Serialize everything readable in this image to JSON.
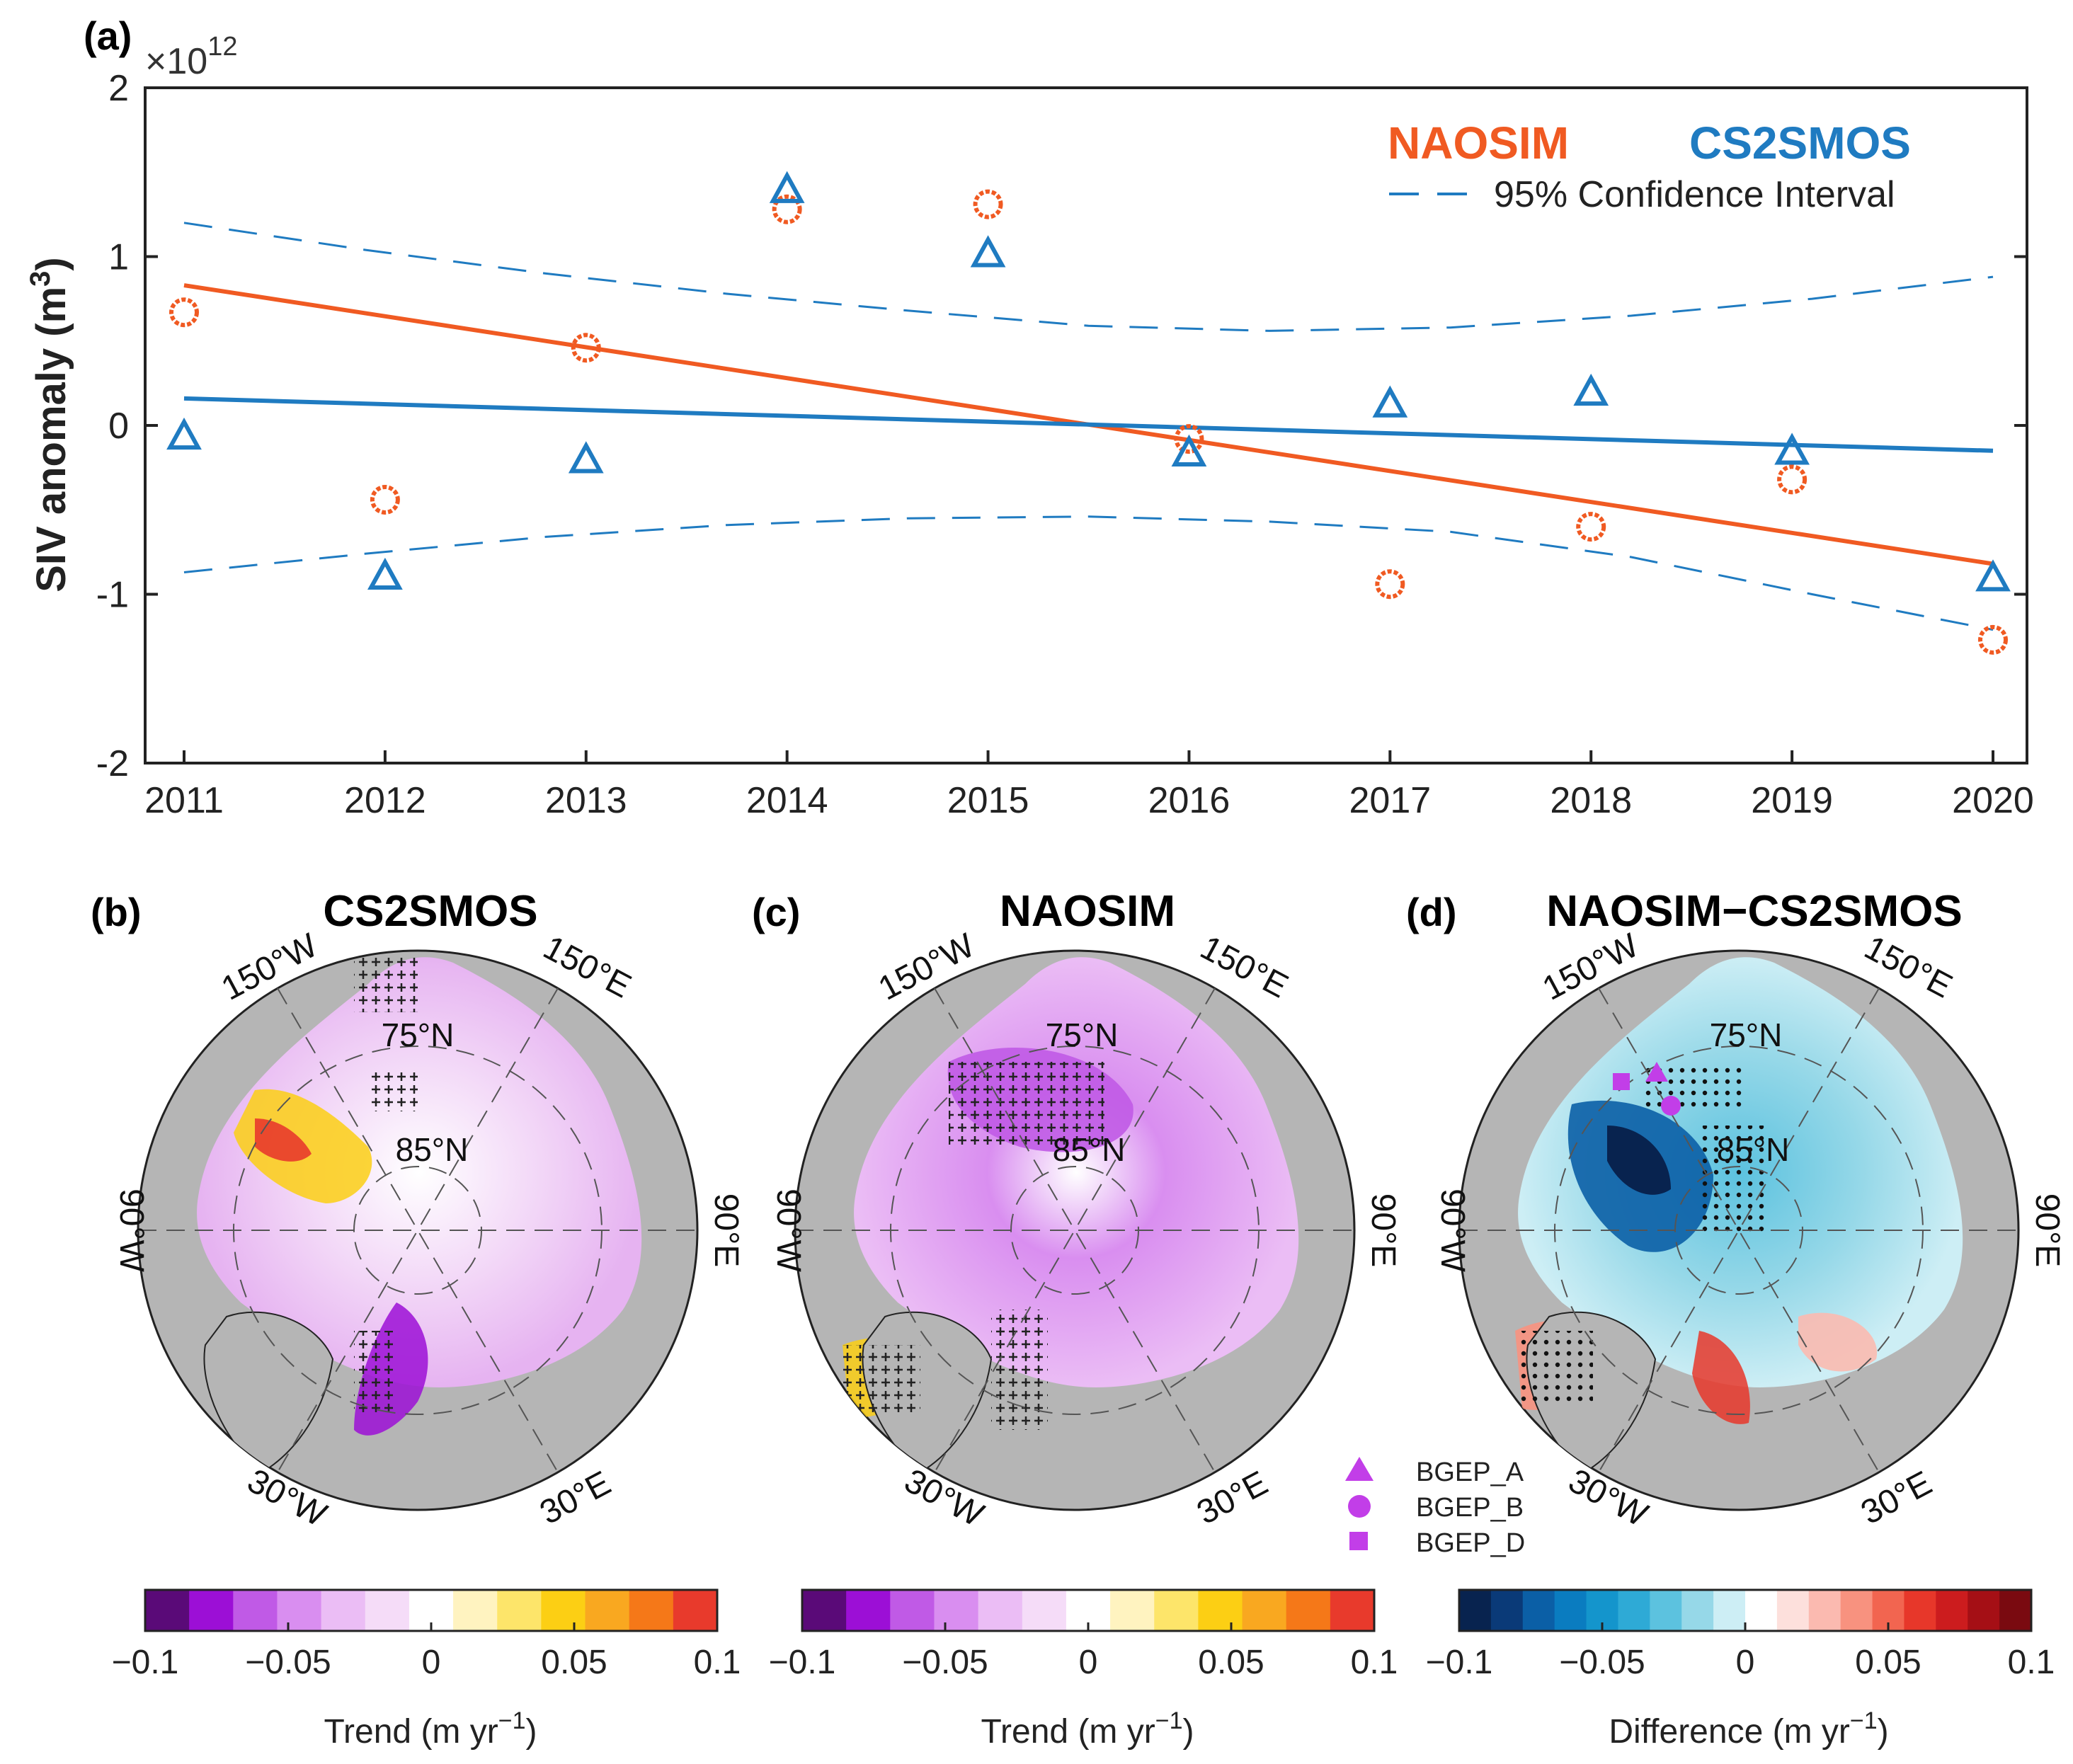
{
  "chart_data": [
    {
      "type": "scatter",
      "panel": "(a)",
      "exponent_label": "×10",
      "exponent_power": "12",
      "ylabel": "SIV anomaly (m",
      "ylabel_sup": "3",
      "ylabel_close": ")",
      "xlim": [
        2011,
        2020
      ],
      "ylim": [
        -2,
        2
      ],
      "xticks": [
        "2011",
        "2012",
        "2013",
        "2014",
        "2015",
        "2016",
        "2017",
        "2018",
        "2019",
        "2020"
      ],
      "yticks": [
        "-2",
        "-1",
        "0",
        "1",
        "2"
      ],
      "series": [
        {
          "name": "NAOSIM",
          "marker": "circle",
          "color": "#f05a22",
          "x": [
            2011,
            2012,
            2013,
            2014,
            2015,
            2016,
            2017,
            2018,
            2019,
            2020
          ],
          "values": [
            0.67,
            -0.44,
            0.46,
            1.28,
            1.31,
            -0.08,
            -0.94,
            -0.6,
            -0.32,
            -1.27
          ],
          "trend": [
            0.83,
            -0.82
          ]
        },
        {
          "name": "CS2SMOS",
          "marker": "triangle",
          "color": "#1f7bc1",
          "x": [
            2011,
            2012,
            2013,
            2014,
            2015,
            2016,
            2017,
            2018,
            2019,
            2020
          ],
          "values": [
            -0.07,
            -0.9,
            -0.21,
            1.39,
            1.01,
            -0.17,
            0.12,
            0.19,
            -0.16,
            -0.91
          ],
          "trend": [
            0.16,
            -0.15
          ]
        }
      ],
      "confidence_upper": [
        1.2,
        1.04,
        0.9,
        0.78,
        0.68,
        0.59,
        0.56,
        0.58,
        0.65,
        0.75,
        0.88
      ],
      "confidence_lower": [
        -0.87,
        -0.76,
        -0.66,
        -0.59,
        -0.55,
        -0.54,
        -0.57,
        -0.63,
        -0.78,
        -1.0,
        -1.21
      ],
      "confidence_x": [
        2011,
        2011.9,
        2012.8,
        2013.7,
        2014.6,
        2015.5,
        2016.4,
        2017.3,
        2018.2,
        2019.1,
        2020
      ],
      "legend": {
        "naosim": "NAOSIM",
        "cs2smos": "CS2SMOS",
        "ci": "95% Confidence Interval"
      }
    },
    {
      "type": "map",
      "panel": "(b)",
      "title": "CS2SMOS",
      "colorbar_label": "Trend (m yr",
      "colorbar_sup": "−1",
      "colorbar_close": ")",
      "colorbar_ticks": [
        "−0.1",
        "−0.05",
        "0",
        "0.05",
        "0.1"
      ],
      "colorbar_colors": [
        "#5a0a78",
        "#9c0fd6",
        "#c05ae6",
        "#d98ef0",
        "#ebbdf5",
        "#f5dcf8",
        "#ffffff",
        "#fff3c0",
        "#fde56a",
        "#fccf14",
        "#f9a820",
        "#f57818",
        "#e83a2c"
      ]
    },
    {
      "type": "map",
      "panel": "(c)",
      "title": "NAOSIM",
      "colorbar_label": "Trend (m yr",
      "colorbar_sup": "−1",
      "colorbar_close": ")",
      "colorbar_ticks": [
        "−0.1",
        "−0.05",
        "0",
        "0.05",
        "0.1"
      ],
      "colorbar_colors": [
        "#5a0a78",
        "#9c0fd6",
        "#c05ae6",
        "#d98ef0",
        "#ebbdf5",
        "#f5dcf8",
        "#ffffff",
        "#fff3c0",
        "#fde56a",
        "#fccf14",
        "#f9a820",
        "#f57818",
        "#e83a2c"
      ]
    },
    {
      "type": "map",
      "panel": "(d)",
      "title": "NAOSIM−CS2SMOS",
      "colorbar_label": "Difference (m yr",
      "colorbar_sup": "−1",
      "colorbar_close": ")",
      "colorbar_ticks": [
        "−0.1",
        "−0.05",
        "0",
        "0.05",
        "0.1"
      ],
      "colorbar_colors": [
        "#08234f",
        "#0a3a78",
        "#0b5fa6",
        "#0a7cc0",
        "#1495cc",
        "#2eaad6",
        "#5cc2df",
        "#96d8e8",
        "#cdeef5",
        "#ffffff",
        "#fde0dc",
        "#fbbab0",
        "#f8927f",
        "#f26550",
        "#e7372a",
        "#cc1c1e",
        "#a50f15",
        "#7a0a10"
      ],
      "stations": [
        "BGEP_A",
        "BGEP_B",
        "BGEP_D"
      ]
    }
  ],
  "map_labels": {
    "lat_75": "75°N",
    "lat_85": "85°N",
    "lon_150w": "150°W",
    "lon_150e": "150°E",
    "lon_90w": "90°W",
    "lon_90e": "90°E",
    "lon_30w": "30°W",
    "lon_30e": "30°E"
  },
  "colors": {
    "land": "#b5b5b5",
    "axis": "#222222",
    "naosim": "#f05a22",
    "cs2smos": "#1f7bc1",
    "station": "#c23ee8"
  }
}
